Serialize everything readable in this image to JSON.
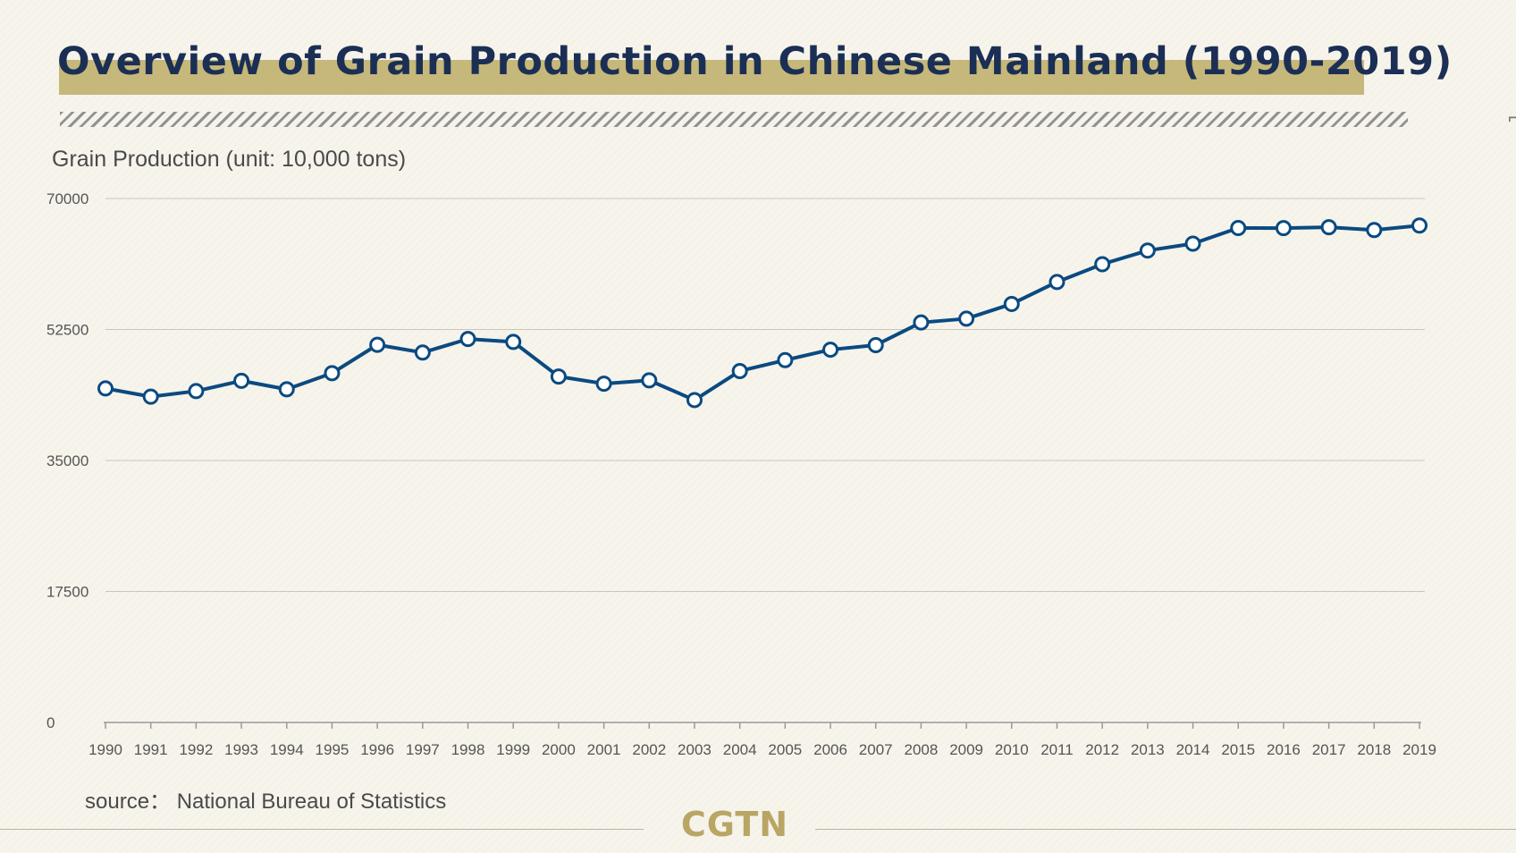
{
  "header": {
    "title": "Overview of Grain Production in Chinese Mainland (1990-2019)"
  },
  "footer": {
    "source": "source： National Bureau of Statistics",
    "brand": "CGTN"
  },
  "colors": {
    "line": "#0b4a80",
    "title_text": "#1b2f55",
    "title_bar": "#c6b87a",
    "brand": "#b9a664"
  },
  "chart_data": {
    "type": "line",
    "ylabel": "Grain Production (unit: 10,000 tons)",
    "xlabel": "",
    "ylim": [
      0,
      70000
    ],
    "yticks": [
      "70000",
      "52500",
      "35000",
      "17500",
      "0"
    ],
    "grid": "horizontal",
    "categories": [
      "1990",
      "1991",
      "1992",
      "1993",
      "1994",
      "1995",
      "1996",
      "1997",
      "1998",
      "1999",
      "2000",
      "2001",
      "2002",
      "2003",
      "2004",
      "2005",
      "2006",
      "2007",
      "2008",
      "2009",
      "2010",
      "2011",
      "2012",
      "2013",
      "2014",
      "2015",
      "2016",
      "2017",
      "2018",
      "2019"
    ],
    "series": [
      {
        "values": [
          44624,
          43529,
          44266,
          45649,
          44510,
          46662,
          50454,
          49417,
          51230,
          50839,
          46218,
          45264,
          45706,
          43070,
          46947,
          48402,
          49804,
          50414,
          53434,
          53941,
          55911,
          58849,
          61223,
          63048,
          63965,
          66060,
          66044,
          66161,
          65789,
          66384
        ]
      }
    ]
  }
}
